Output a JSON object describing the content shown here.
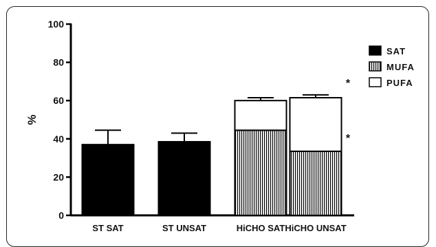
{
  "chart_data": {
    "type": "bar",
    "stacked": true,
    "categories": [
      "ST SAT",
      "ST UNSAT",
      "HiCHO SAT",
      "HiCHO UNSAT"
    ],
    "series": [
      {
        "name": "SAT",
        "fill": "solid",
        "color": "#000000",
        "values": [
          37,
          38.5,
          0,
          0
        ],
        "errors": [
          7.5,
          4.5,
          0,
          0
        ]
      },
      {
        "name": "MUFA",
        "fill": "striped",
        "color": "#000000",
        "values": [
          0,
          0,
          44.5,
          33.5
        ],
        "errors": [
          0,
          0,
          3.5,
          0.7
        ]
      },
      {
        "name": "PUFA",
        "fill": "empty",
        "color": "#ffffff",
        "values": [
          0,
          0,
          15.5,
          28
        ],
        "errors": [
          0,
          0,
          1.5,
          1.5
        ]
      }
    ],
    "ylabel": "%",
    "ylim": [
      0,
      100
    ],
    "yticks": [
      0,
      20,
      40,
      60,
      80,
      100
    ],
    "grid": false,
    "legend_position": "top-right",
    "annotations": [
      {
        "text": "*",
        "category": "HiCHO UNSAT",
        "series": "PUFA"
      },
      {
        "text": "*",
        "category": "HiCHO UNSAT",
        "series": "MUFA"
      }
    ]
  }
}
